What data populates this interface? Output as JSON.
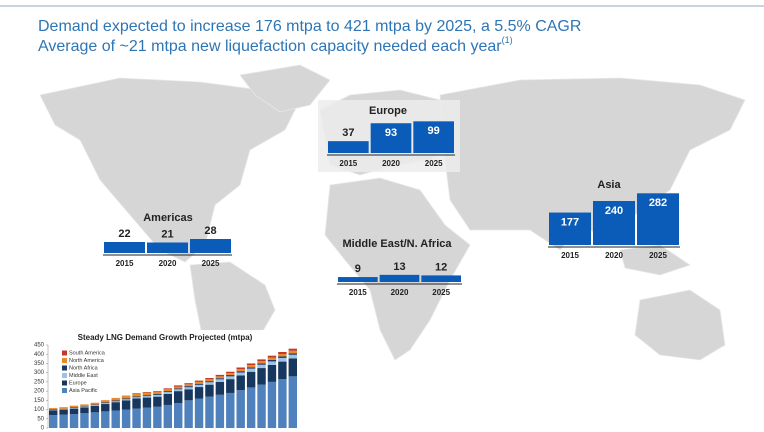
{
  "header": {
    "line1": "Demand expected to increase 176 mtpa to 421 mtpa by 2025, a 5.5% CAGR",
    "line2": "Average of ~21 mtpa new liquefaction capacity needed each year",
    "line2_note": "(1)"
  },
  "chart_data": [
    {
      "type": "bar",
      "title": "Europe",
      "categories": [
        "2015",
        "2020",
        "2025"
      ],
      "values": [
        37,
        93,
        99
      ],
      "color": "#0b5cb8",
      "ylim": [
        0,
        100
      ]
    },
    {
      "type": "bar",
      "title": "Americas",
      "categories": [
        "2015",
        "2020",
        "2025"
      ],
      "values": [
        22,
        21,
        28
      ],
      "color": "#0b5cb8",
      "ylim": [
        0,
        60
      ]
    },
    {
      "type": "bar",
      "title": "Middle East/N. Africa",
      "categories": [
        "2015",
        "2020",
        "2025"
      ],
      "values": [
        9,
        13,
        12
      ],
      "color": "#0b5cb8",
      "ylim": [
        0,
        40
      ]
    },
    {
      "type": "bar",
      "title": "Asia",
      "categories": [
        "2015",
        "2020",
        "2025"
      ],
      "values": [
        177,
        240,
        282
      ],
      "color": "#0b5cb8",
      "ylim": [
        0,
        300
      ]
    },
    {
      "type": "stacked_bar",
      "title": "Steady LNG Demand Growth Projected (mtpa)",
      "categories": [
        null,
        null,
        null,
        null,
        null,
        null,
        null,
        null,
        null,
        null,
        null,
        null,
        null,
        null,
        null,
        null,
        null,
        null,
        null,
        null,
        null,
        null,
        null,
        null
      ],
      "ylim": [
        0,
        450
      ],
      "yticks": [
        0,
        50,
        100,
        150,
        200,
        250,
        300,
        350,
        400,
        450
      ],
      "series": [
        {
          "name": "Asia Pacific",
          "color": "#4f81bd",
          "values": [
            70,
            72,
            75,
            80,
            85,
            90,
            95,
            100,
            105,
            110,
            115,
            125,
            135,
            150,
            160,
            170,
            180,
            190,
            205,
            220,
            235,
            250,
            265,
            280
          ]
        },
        {
          "name": "Europe",
          "color": "#17375e",
          "values": [
            25,
            27,
            30,
            32,
            35,
            40,
            45,
            50,
            55,
            55,
            55,
            60,
            65,
            60,
            62,
            65,
            70,
            75,
            80,
            85,
            90,
            92,
            95,
            97
          ]
        },
        {
          "name": "Middle East",
          "color": "#9dc3e6",
          "values": [
            2,
            2,
            3,
            3,
            4,
            5,
            5,
            6,
            7,
            8,
            9,
            10,
            10,
            11,
            12,
            13,
            14,
            15,
            16,
            17,
            18,
            19,
            20,
            20
          ]
        },
        {
          "name": "North Africa",
          "color": "#1f3864",
          "values": [
            3,
            3,
            3,
            3,
            3,
            4,
            4,
            4,
            4,
            5,
            5,
            5,
            5,
            6,
            6,
            6,
            6,
            7,
            7,
            7,
            7,
            8,
            8,
            8
          ]
        },
        {
          "name": "North America",
          "color": "#e8892a",
          "values": [
            8,
            9,
            10,
            10,
            10,
            12,
            14,
            15,
            16,
            14,
            12,
            10,
            10,
            10,
            10,
            10,
            10,
            10,
            11,
            12,
            12,
            13,
            13,
            14
          ]
        },
        {
          "name": "South America",
          "color": "#c0392b",
          "values": [
            0,
            0,
            0,
            0,
            0,
            0,
            0,
            1,
            2,
            3,
            4,
            5,
            6,
            6,
            7,
            7,
            8,
            8,
            9,
            9,
            10,
            10,
            11,
            11
          ]
        }
      ]
    }
  ]
}
